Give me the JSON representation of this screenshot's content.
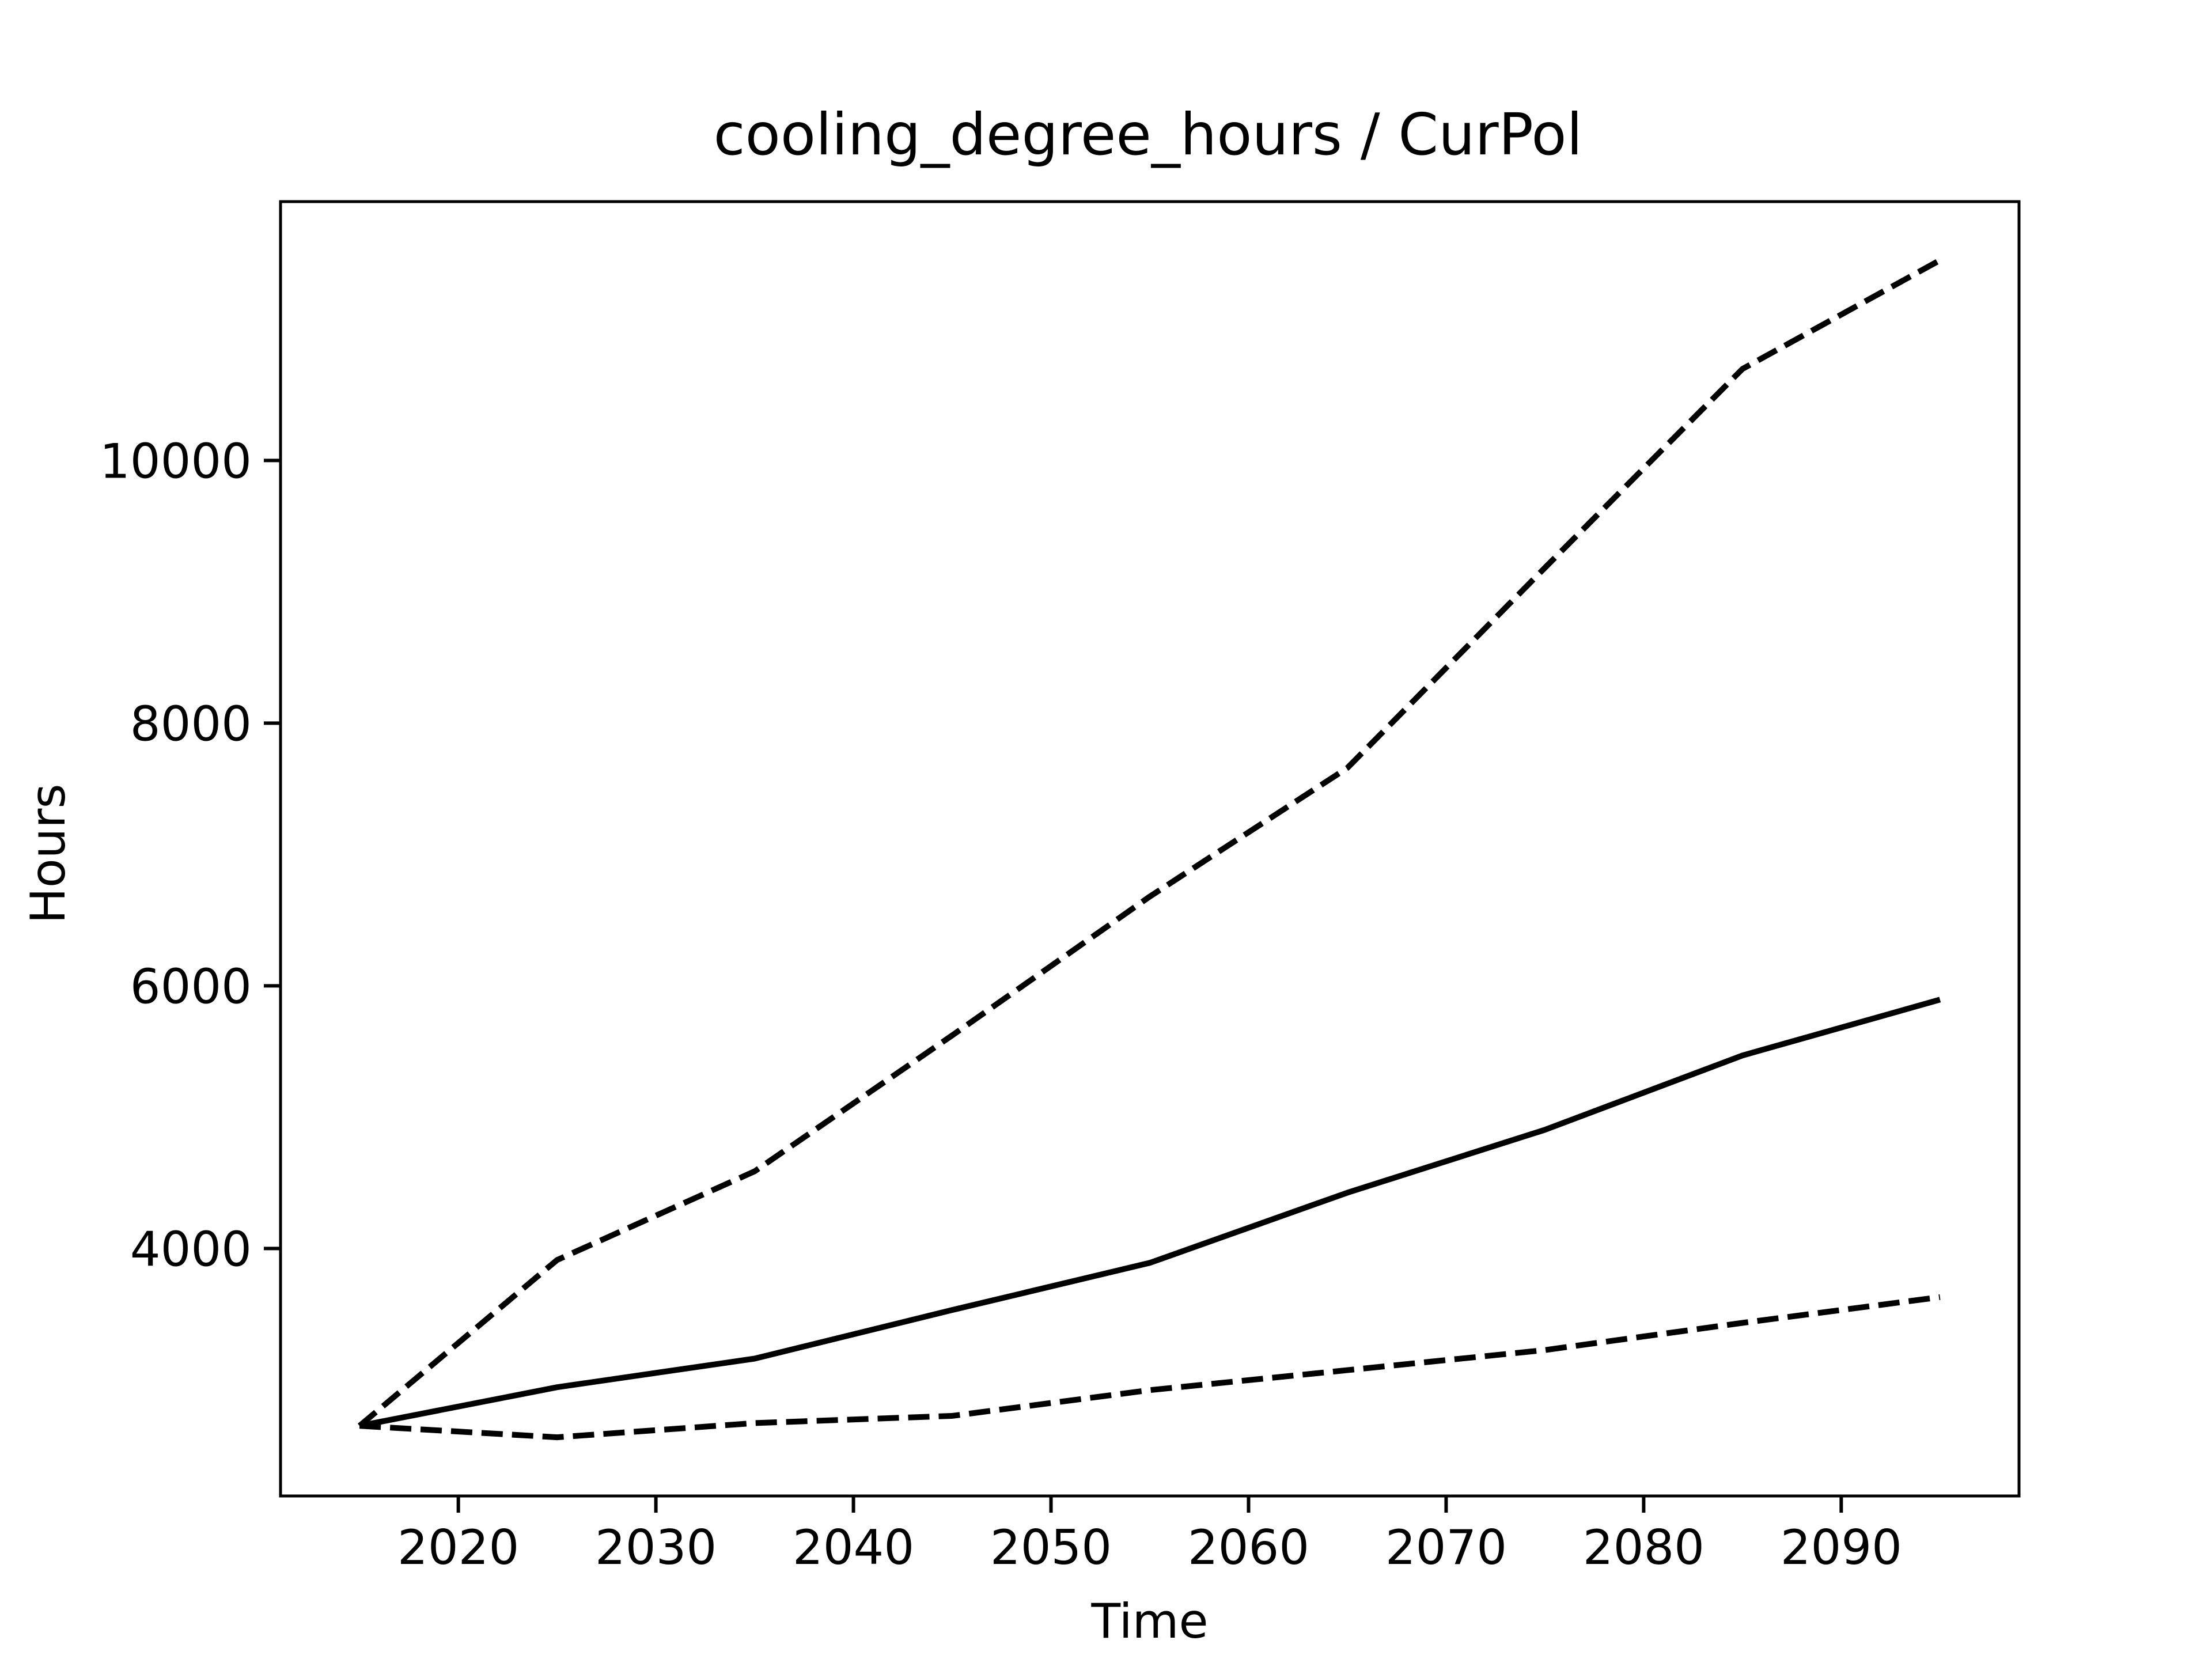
{
  "chart_data": {
    "type": "line",
    "title": "cooling_degree_hours / CurPol",
    "x_label": "Time",
    "y_label": "Hours",
    "x": [
      2015,
      2025,
      2035,
      2045,
      2055,
      2065,
      2075,
      2085,
      2095
    ],
    "series": [
      {
        "color": "#000000",
        "dashed": true,
        "values": [
          2650,
          3913,
          4588,
          5623,
          6680,
          7659,
          9183,
          10697,
          11525
        ]
      },
      {
        "color": "#000000",
        "dashed": false,
        "values": [
          2650,
          2944,
          3162,
          3532,
          3891,
          4425,
          4904,
          5470,
          5895
        ]
      },
      {
        "color": "#000000",
        "dashed": true,
        "values": [
          2650,
          2563,
          2671,
          2726,
          2922,
          3074,
          3227,
          3434,
          3630
        ]
      }
    ],
    "xlim": [
      2011,
      2099
    ],
    "ylim": [
      2116,
      11971
    ],
    "xticks": [
      2020,
      2030,
      2040,
      2050,
      2060,
      2070,
      2080,
      2090
    ],
    "yticks": [
      4000,
      6000,
      8000,
      10000
    ],
    "grid": false
  }
}
